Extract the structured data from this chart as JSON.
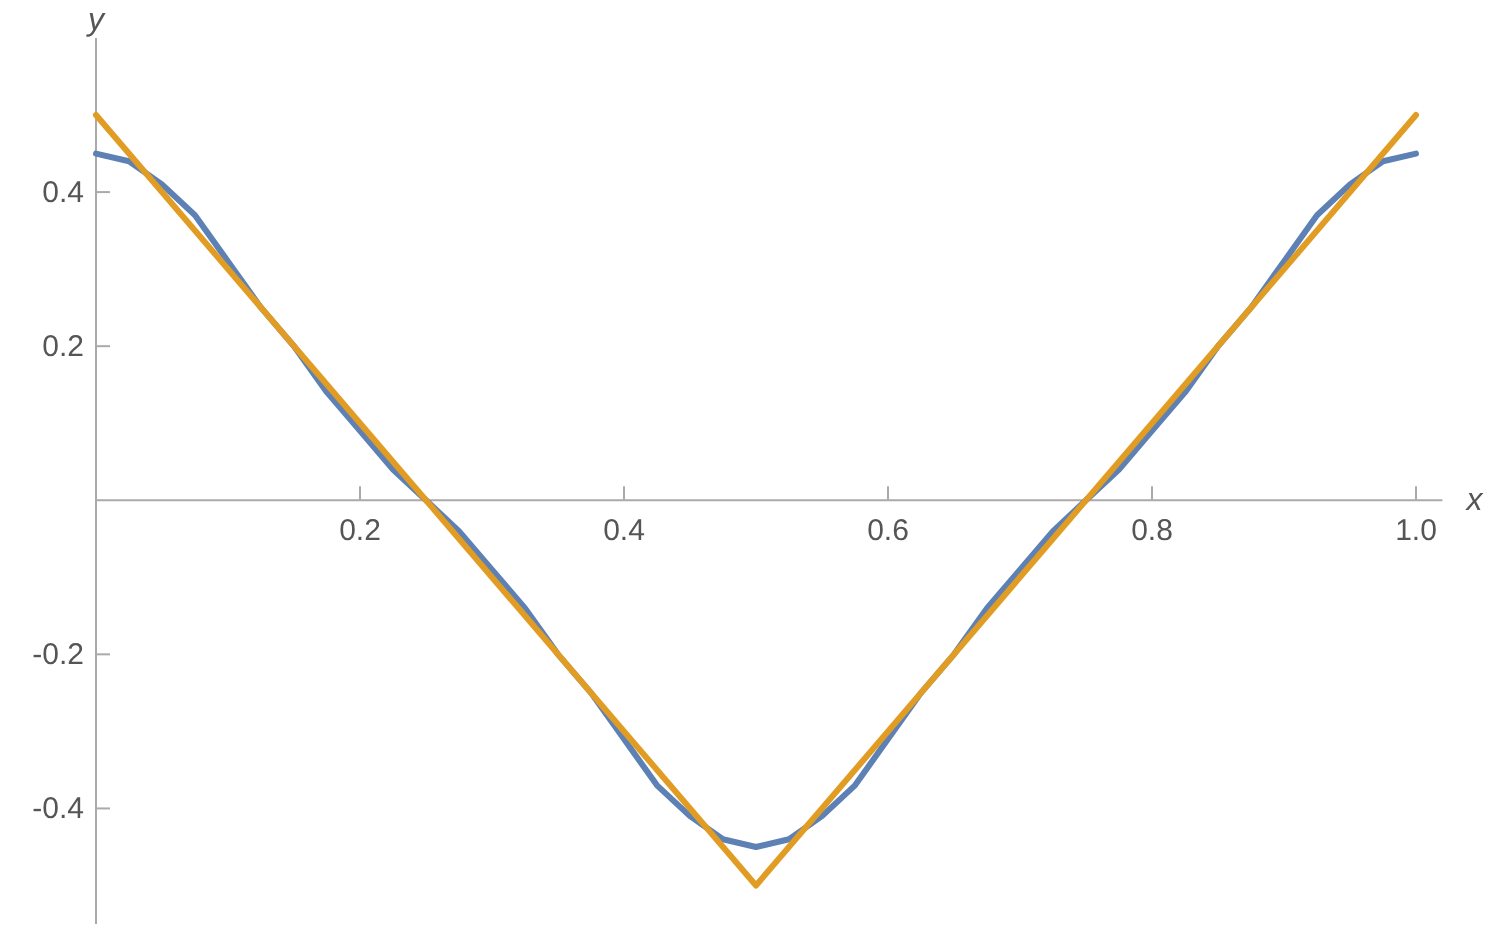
{
  "chart_data": {
    "type": "line",
    "xlabel": "x",
    "ylabel": "y",
    "xlim": [
      0,
      1.02
    ],
    "ylim": [
      -0.55,
      0.6
    ],
    "xticks": [
      0.2,
      0.4,
      0.6,
      0.8,
      {
        "value": 1,
        "label": "1.0"
      }
    ],
    "yticks": [
      -0.4,
      -0.2,
      0.2,
      0.4
    ],
    "grid": false,
    "series": [
      {
        "color": "#5e81b5",
        "x": [
          0,
          0.025,
          0.05,
          0.075,
          0.1,
          0.125,
          0.15,
          0.175,
          0.2,
          0.225,
          0.25,
          0.275,
          0.3,
          0.325,
          0.35,
          0.375,
          0.4,
          0.425,
          0.45,
          0.475,
          0.5,
          0.525,
          0.55,
          0.575,
          0.6,
          0.625,
          0.65,
          0.675,
          0.7,
          0.725,
          0.75,
          0.775,
          0.8,
          0.825,
          0.85,
          0.875,
          0.9,
          0.925,
          0.95,
          0.975,
          1
        ],
        "values": [
          0.45,
          0.44,
          0.41,
          0.37,
          0.31,
          0.25,
          0.2,
          0.14,
          0.09,
          0.04,
          0,
          -0.04,
          -0.09,
          -0.14,
          -0.2,
          -0.25,
          -0.31,
          -0.37,
          -0.41,
          -0.44,
          -0.45,
          -0.44,
          -0.41,
          -0.37,
          -0.31,
          -0.25,
          -0.2,
          -0.14,
          -0.09,
          -0.04,
          0,
          0.04,
          0.09,
          0.14,
          0.2,
          0.25,
          0.31,
          0.37,
          0.41,
          0.44,
          0.45
        ]
      },
      {
        "color": "#e19c24",
        "x": [
          0,
          0.5,
          1
        ],
        "values": [
          0.5,
          -0.5,
          0.5
        ]
      }
    ]
  }
}
